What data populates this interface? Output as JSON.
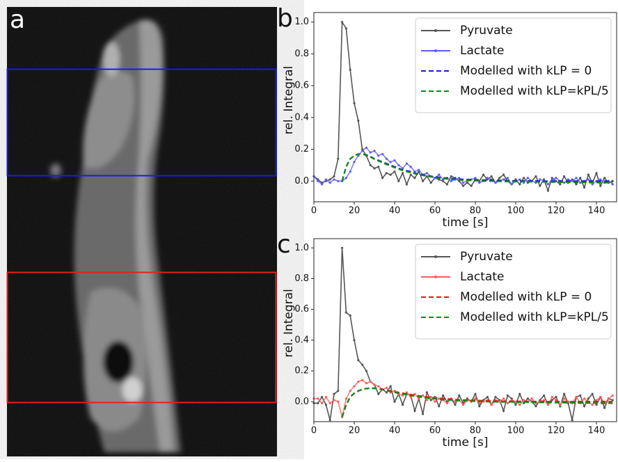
{
  "image_panel": {
    "label": "a"
  },
  "chart_data": [
    {
      "type": "line",
      "panel_label": "b",
      "x_label": "time [s]",
      "y_label": "rel. Integral",
      "x": [
        0,
        2,
        4,
        6,
        8,
        10,
        12,
        14,
        16,
        18,
        20,
        22,
        24,
        26,
        28,
        30,
        32,
        34,
        36,
        38,
        40,
        42,
        44,
        46,
        48,
        50,
        52,
        54,
        56,
        58,
        60,
        62,
        64,
        66,
        68,
        70,
        72,
        74,
        76,
        78,
        80,
        82,
        84,
        86,
        88,
        90,
        92,
        94,
        96,
        98,
        100,
        102,
        104,
        106,
        108,
        110,
        112,
        114,
        116,
        118,
        120,
        122,
        124,
        126,
        128,
        130,
        132,
        134,
        136,
        138,
        140,
        142,
        144,
        146,
        148
      ],
      "xlim": [
        0,
        150
      ],
      "xticks": [
        0,
        20,
        40,
        60,
        80,
        100,
        120,
        140
      ],
      "ylim": [
        -0.13,
        1.06
      ],
      "yticks": [
        {
          "value": 0,
          "label": "0.0"
        },
        0.2,
        0.4,
        0.6,
        0.8,
        {
          "value": 1,
          "label": "1.0"
        }
      ],
      "legend": "upper right",
      "series": [
        {
          "name": "Pyruvate",
          "color": "#555555",
          "marker": "o",
          "linestyle": "-",
          "values": [
            0.03,
            0.01,
            -0.01,
            0.0,
            0.01,
            0.03,
            0.14,
            1.0,
            0.96,
            0.7,
            0.49,
            0.38,
            0.2,
            0.16,
            0.1,
            0.08,
            0.09,
            0.02,
            0.05,
            0.04,
            0.06,
            0.0,
            0.05,
            -0.02,
            0.04,
            0.02,
            0.06,
            0.0,
            0.03,
            -0.01,
            0.02,
            0.01,
            0.0,
            -0.02,
            0.03,
            0.02,
            0.0,
            -0.03,
            -0.01,
            -0.03,
            0.01,
            0.0,
            0.04,
            0.01,
            0.03,
            -0.01,
            0.02,
            0.04,
            0.0,
            -0.02,
            0.01,
            -0.02,
            0.02,
            -0.01,
            0.0,
            0.03,
            -0.03,
            0.01,
            -0.06,
            0.02,
            0.0,
            -0.02,
            0.03,
            -0.01,
            0.01,
            -0.02,
            0.02,
            -0.04,
            0.04,
            -0.01,
            0.05,
            -0.03,
            0.02,
            -0.01,
            0.0
          ]
        },
        {
          "name": "Lactate",
          "color": "#5b5bff",
          "marker": "o",
          "linestyle": "-",
          "values": [
            0.03,
            0.0,
            -0.02,
            0.01,
            -0.01,
            0.01,
            0.0,
            0.0,
            0.02,
            0.06,
            0.12,
            0.16,
            0.19,
            0.21,
            0.18,
            0.19,
            0.16,
            0.17,
            0.14,
            0.12,
            0.13,
            0.1,
            0.08,
            0.11,
            0.09,
            0.06,
            0.07,
            0.04,
            0.05,
            0.03,
            0.02,
            0.04,
            0.01,
            0.02,
            0.0,
            0.01,
            0.02,
            -0.01,
            0.0,
            0.01,
            0.02,
            -0.01,
            0.0,
            0.02,
            0.01,
            -0.01,
            0.0,
            0.01,
            0.02,
            -0.02,
            0.0,
            0.01,
            -0.01,
            0.02,
            0.0,
            -0.01,
            0.01,
            0.0,
            -0.02,
            0.01,
            0.02,
            0.0,
            -0.01,
            0.01,
            0.0,
            0.02,
            -0.01,
            0.0,
            0.01,
            -0.02,
            0.0,
            0.01,
            -0.01,
            0.0,
            -0.02
          ]
        },
        {
          "name": "Modelled with kLP = 0",
          "color": "#1a1ad6",
          "linestyle": "--",
          "values": [
            null,
            null,
            null,
            null,
            null,
            null,
            null,
            0.0,
            0.09,
            0.14,
            0.16,
            0.17,
            0.17,
            0.165,
            0.155,
            0.14,
            0.13,
            0.12,
            0.11,
            0.1,
            0.09,
            0.08,
            0.07,
            0.065,
            0.06,
            0.05,
            0.045,
            0.04,
            0.035,
            0.03,
            0.027,
            0.024,
            0.021,
            0.018,
            0.016,
            0.014,
            0.012,
            0.011,
            0.01,
            0.009,
            0.008,
            0.007,
            0.006,
            0.005,
            0.005,
            0.004,
            0.004,
            0.003,
            0.003,
            0.002,
            0.002,
            0.002,
            0.001,
            0.001,
            0.001,
            0.001,
            0.0,
            0.0,
            0.0,
            0.0,
            0.0,
            0.0,
            0.0,
            0.0,
            0.0,
            0.0,
            0.0,
            0.0,
            0.0,
            0.0,
            0.0,
            0.0,
            0.0,
            0.0,
            0.0
          ]
        },
        {
          "name": "Modelled with kLP=kPL/5",
          "color": "#108a10",
          "linestyle": "--",
          "values": [
            null,
            null,
            null,
            null,
            null,
            null,
            null,
            0.0,
            0.09,
            0.14,
            0.16,
            0.17,
            0.17,
            0.163,
            0.152,
            0.138,
            0.127,
            0.116,
            0.105,
            0.095,
            0.085,
            0.076,
            0.067,
            0.06,
            0.053,
            0.047,
            0.041,
            0.036,
            0.031,
            0.027,
            0.023,
            0.02,
            0.017,
            0.014,
            0.012,
            0.01,
            0.008,
            0.006,
            0.005,
            0.004,
            0.003,
            0.002,
            0.001,
            0.0,
            0.0,
            -0.001,
            -0.001,
            -0.002,
            -0.002,
            -0.002,
            -0.003,
            -0.003,
            -0.003,
            -0.004,
            -0.004,
            -0.004,
            -0.005,
            -0.005,
            -0.005,
            -0.006,
            -0.006,
            -0.006,
            -0.007,
            -0.007,
            -0.007,
            -0.008,
            -0.008,
            -0.008,
            -0.009,
            -0.009,
            -0.009,
            -0.01,
            -0.01,
            -0.01,
            -0.01
          ]
        }
      ]
    },
    {
      "type": "line",
      "panel_label": "c",
      "x_label": "time [s]",
      "y_label": "rel. Integral",
      "x": [
        0,
        2,
        4,
        6,
        8,
        10,
        12,
        14,
        16,
        18,
        20,
        22,
        24,
        26,
        28,
        30,
        32,
        34,
        36,
        38,
        40,
        42,
        44,
        46,
        48,
        50,
        52,
        54,
        56,
        58,
        60,
        62,
        64,
        66,
        68,
        70,
        72,
        74,
        76,
        78,
        80,
        82,
        84,
        86,
        88,
        90,
        92,
        94,
        96,
        98,
        100,
        102,
        104,
        106,
        108,
        110,
        112,
        114,
        116,
        118,
        120,
        122,
        124,
        126,
        128,
        130,
        132,
        134,
        136,
        138,
        140,
        142,
        144,
        146,
        148
      ],
      "xlim": [
        0,
        150
      ],
      "xticks": [
        0,
        20,
        40,
        60,
        80,
        100,
        120,
        140
      ],
      "ylim": [
        -0.13,
        1.06
      ],
      "yticks": [
        {
          "value": 0,
          "label": "0.0"
        },
        0.2,
        0.4,
        0.6,
        0.8,
        {
          "value": 1,
          "label": "1.0"
        }
      ],
      "legend": "upper right",
      "series": [
        {
          "name": "Pyruvate",
          "color": "#555555",
          "marker": "o",
          "linestyle": "-",
          "values": [
            -0.01,
            -0.01,
            0.03,
            -0.02,
            -0.12,
            0.05,
            0.07,
            1.0,
            0.58,
            0.56,
            0.4,
            0.27,
            0.24,
            0.2,
            0.13,
            0.11,
            0.05,
            0.08,
            0.06,
            0.1,
            0.0,
            0.05,
            -0.02,
            0.05,
            0.04,
            -0.06,
            0.02,
            -0.08,
            0.06,
            0.01,
            0.03,
            -0.03,
            0.04,
            0.0,
            0.02,
            -0.02,
            0.04,
            -0.01,
            0.02,
            0.0,
            0.05,
            -0.03,
            0.01,
            0.03,
            -0.02,
            0.03,
            0.01,
            -0.06,
            0.04,
            0.02,
            -0.02,
            0.05,
            -0.01,
            0.02,
            0.0,
            -0.03,
            0.01,
            0.04,
            -0.02,
            0.01,
            0.03,
            -0.03,
            0.05,
            -0.01,
            -0.12,
            0.03,
            0.04,
            -0.03,
            0.02,
            0.05,
            -0.02,
            0.03,
            -0.04,
            0.02,
            0.01
          ]
        },
        {
          "name": "Lactate",
          "color": "#ff5a5a",
          "marker": "o",
          "linestyle": "-",
          "values": [
            0.02,
            0.02,
            -0.01,
            0.03,
            -0.01,
            0.01,
            0.0,
            -0.1,
            0.02,
            0.07,
            0.1,
            0.13,
            0.14,
            0.12,
            0.13,
            0.11,
            0.1,
            0.08,
            0.09,
            0.06,
            0.07,
            0.05,
            0.04,
            0.06,
            0.03,
            0.05,
            0.02,
            0.04,
            0.01,
            0.03,
            0.0,
            0.02,
            0.01,
            -0.01,
            0.02,
            0.0,
            0.01,
            -0.02,
            0.01,
            0.0,
            0.02,
            -0.01,
            0.0,
            0.01,
            -0.02,
            0.01,
            0.0,
            0.02,
            -0.01,
            0.01,
            0.0,
            -0.02,
            0.01,
            0.0,
            0.02,
            -0.01,
            0.0,
            0.01,
            -0.02,
            0.03,
            0.01,
            -0.02,
            0.02,
            0.0,
            -0.01,
            0.03,
            -0.01,
            0.02,
            0.0,
            -0.02,
            0.01,
            0.03,
            -0.01,
            0.02,
            0.04
          ]
        },
        {
          "name": "Modelled with kLP = 0",
          "color": "#e01a1a",
          "linestyle": "--",
          "values": [
            null,
            null,
            null,
            null,
            null,
            null,
            null,
            -0.1,
            -0.02,
            0.03,
            0.055,
            0.07,
            0.08,
            0.085,
            0.088,
            0.088,
            0.085,
            0.08,
            0.075,
            0.07,
            0.065,
            0.06,
            0.055,
            0.05,
            0.046,
            0.042,
            0.038,
            0.034,
            0.031,
            0.028,
            0.025,
            0.022,
            0.02,
            0.018,
            0.016,
            0.014,
            0.012,
            0.011,
            0.01,
            0.009,
            0.008,
            0.007,
            0.006,
            0.005,
            0.005,
            0.004,
            0.004,
            0.003,
            0.003,
            0.002,
            0.002,
            0.002,
            0.001,
            0.001,
            0.001,
            0.001,
            0.0,
            0.0,
            0.0,
            0.0,
            0.0,
            0.0,
            0.0,
            0.0,
            0.0,
            0.0,
            0.0,
            0.0,
            0.0,
            0.0,
            0.0,
            0.0,
            0.0,
            0.0,
            0.0
          ]
        },
        {
          "name": "Modelled with kLP=kPL/5",
          "color": "#108a10",
          "linestyle": "--",
          "values": [
            null,
            null,
            null,
            null,
            null,
            null,
            null,
            -0.1,
            -0.02,
            0.03,
            0.055,
            0.07,
            0.08,
            0.085,
            0.087,
            0.086,
            0.083,
            0.078,
            0.072,
            0.066,
            0.06,
            0.055,
            0.05,
            0.045,
            0.04,
            0.036,
            0.032,
            0.028,
            0.025,
            0.022,
            0.019,
            0.016,
            0.014,
            0.012,
            0.01,
            0.008,
            0.007,
            0.006,
            0.005,
            0.004,
            0.003,
            0.002,
            0.001,
            0.0,
            0.0,
            -0.001,
            -0.001,
            -0.002,
            -0.002,
            -0.002,
            -0.003,
            -0.003,
            -0.003,
            -0.004,
            -0.004,
            -0.004,
            -0.005,
            -0.005,
            -0.005,
            -0.006,
            -0.006,
            -0.006,
            -0.007,
            -0.007,
            -0.007,
            -0.008,
            -0.008,
            -0.008,
            -0.009,
            -0.009,
            -0.009,
            -0.01,
            -0.01,
            -0.01,
            -0.01
          ]
        }
      ]
    }
  ]
}
